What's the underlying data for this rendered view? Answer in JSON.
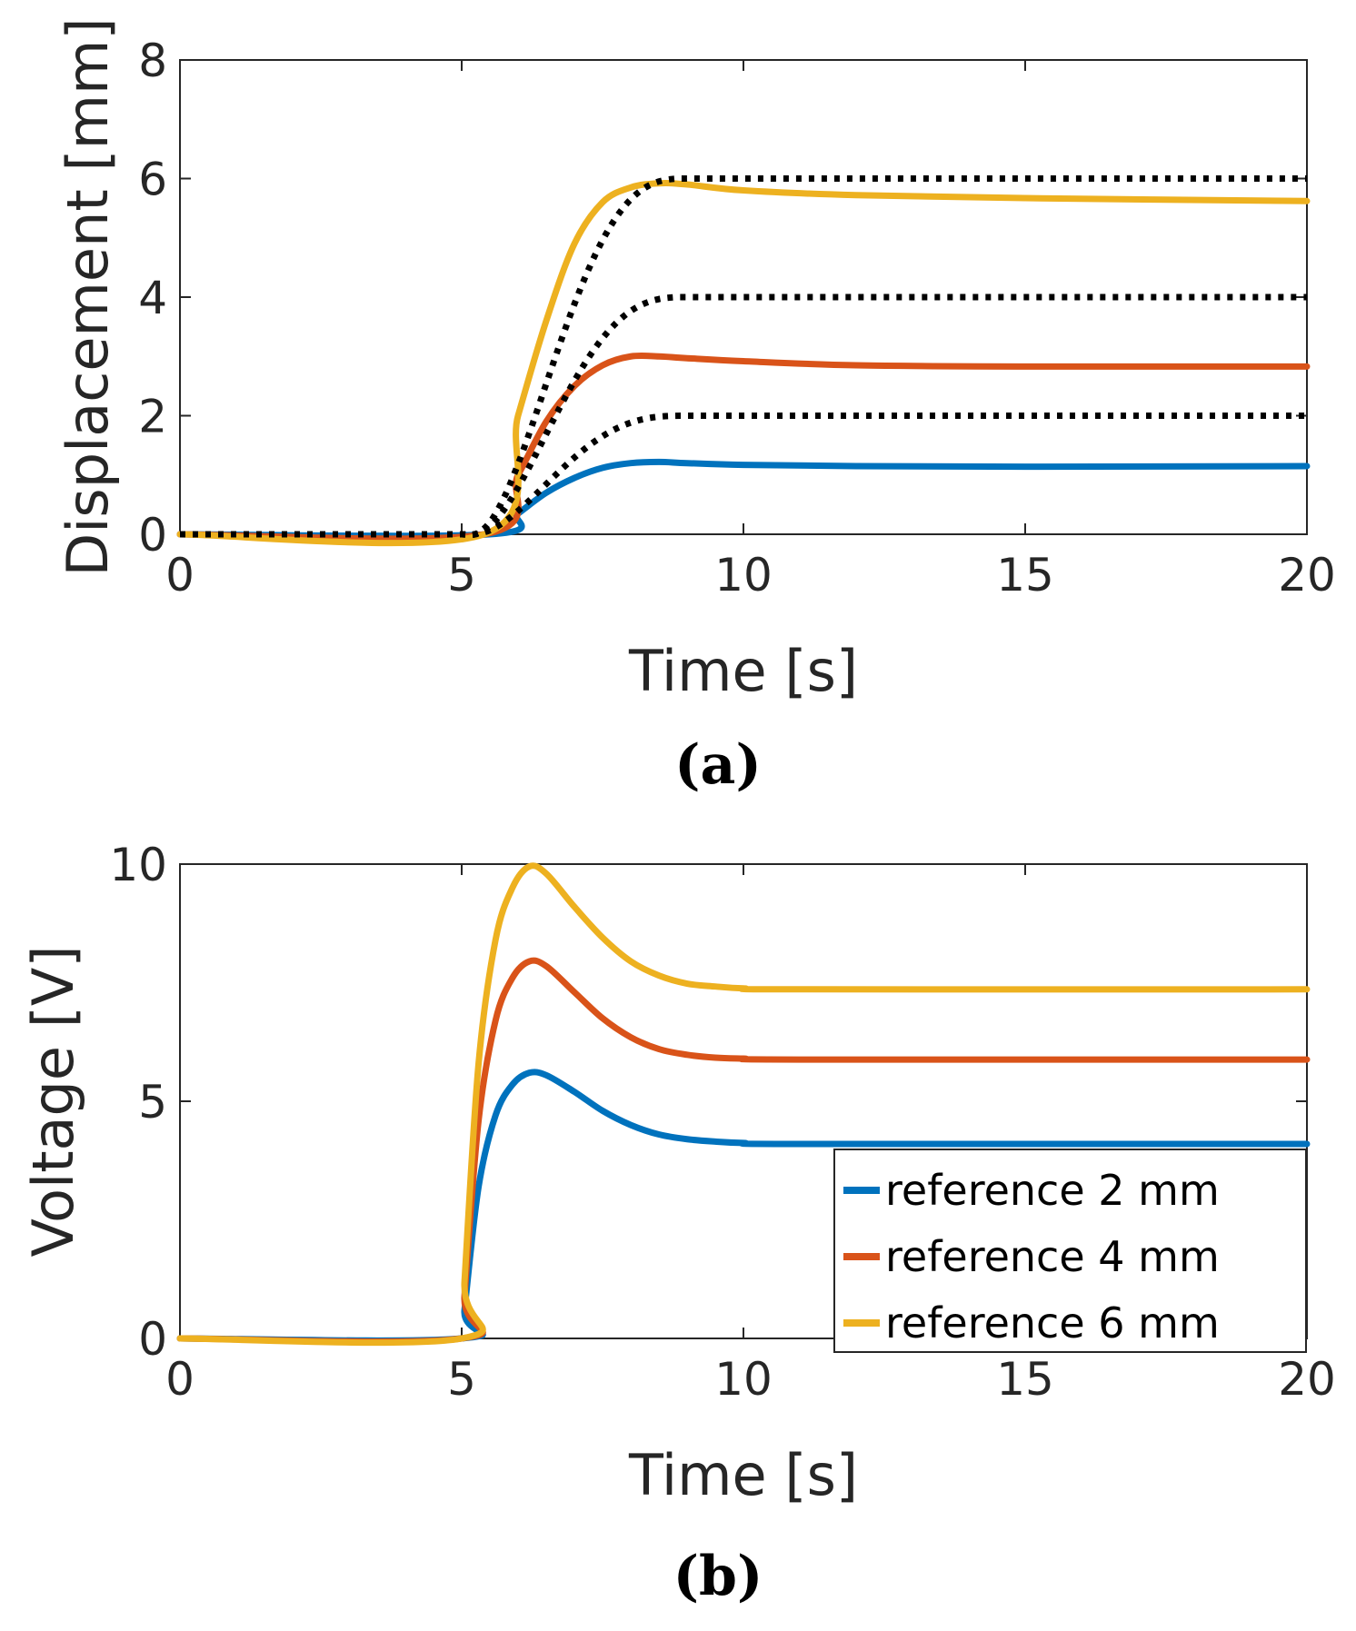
{
  "chart_data": [
    {
      "panel": "(a)",
      "type": "line",
      "xlabel": "Time [s]",
      "ylabel": "Displacement [mm]",
      "xlim": [
        0,
        20
      ],
      "ylim": [
        0,
        8
      ],
      "xticks": [
        "0",
        "5",
        "10",
        "15",
        "20"
      ],
      "yticks": [
        "0",
        "2",
        "4",
        "6",
        "8"
      ],
      "grid": false,
      "references": [
        {
          "name": "reference 2 mm",
          "color": "#000000",
          "style": "dotted",
          "final": 2
        },
        {
          "name": "reference 4 mm",
          "color": "#000000",
          "style": "dotted",
          "final": 4
        },
        {
          "name": "reference 6 mm",
          "color": "#000000",
          "style": "dotted",
          "final": 6
        }
      ],
      "series": [
        {
          "name": "reference 2 mm",
          "color": "#0072BD",
          "x": [
            0,
            5.5,
            6,
            6.5,
            7,
            7.5,
            8,
            8.5,
            9,
            10,
            12,
            15,
            20
          ],
          "y": [
            0,
            0,
            0.35,
            0.7,
            0.95,
            1.12,
            1.2,
            1.22,
            1.2,
            1.17,
            1.15,
            1.14,
            1.15
          ]
        },
        {
          "name": "reference 4 mm",
          "color": "#D95319",
          "x": [
            0,
            5.4,
            6,
            6.5,
            7,
            7.5,
            8,
            8.5,
            9,
            10,
            12,
            15,
            20
          ],
          "y": [
            0,
            0,
            1.0,
            1.9,
            2.5,
            2.85,
            3.0,
            3.0,
            2.97,
            2.92,
            2.85,
            2.83,
            2.83
          ]
        },
        {
          "name": "reference 6 mm",
          "color": "#EDB120",
          "x": [
            0,
            5.4,
            6,
            6.5,
            7,
            7.5,
            8,
            8.5,
            9,
            10,
            12,
            15,
            20
          ],
          "y": [
            0,
            0,
            2.0,
            3.6,
            4.9,
            5.6,
            5.85,
            5.92,
            5.9,
            5.8,
            5.72,
            5.67,
            5.62
          ]
        }
      ]
    },
    {
      "panel": "(b)",
      "type": "line",
      "xlabel": "Time [s]",
      "ylabel": "Voltage [V]",
      "xlim": [
        0,
        20
      ],
      "ylim": [
        0,
        10
      ],
      "xticks": [
        "0",
        "5",
        "10",
        "15",
        "20"
      ],
      "yticks": [
        "0",
        "5",
        "10"
      ],
      "grid": false,
      "legend_position": "bottom-right",
      "series": [
        {
          "name": "reference 2 mm",
          "color": "#0072BD",
          "x": [
            0,
            5,
            5.05,
            5.3,
            5.6,
            5.9,
            6.2,
            6.5,
            7,
            7.5,
            8,
            8.5,
            9,
            9.5,
            10,
            11,
            20
          ],
          "y": [
            0,
            0,
            0.6,
            3.2,
            4.7,
            5.35,
            5.6,
            5.55,
            5.2,
            4.8,
            4.5,
            4.3,
            4.2,
            4.15,
            4.12,
            4.1,
            4.1
          ]
        },
        {
          "name": "reference 4 mm",
          "color": "#D95319",
          "x": [
            0,
            5,
            5.05,
            5.3,
            5.6,
            5.9,
            6.2,
            6.5,
            7,
            7.5,
            8,
            8.5,
            9,
            9.5,
            10,
            11,
            20
          ],
          "y": [
            0,
            0,
            0.9,
            4.6,
            6.7,
            7.6,
            7.95,
            7.85,
            7.3,
            6.75,
            6.35,
            6.1,
            5.98,
            5.92,
            5.9,
            5.88,
            5.88
          ]
        },
        {
          "name": "reference 6 mm",
          "color": "#EDB120",
          "x": [
            0,
            5,
            5.05,
            5.3,
            5.6,
            5.9,
            6.2,
            6.5,
            7,
            7.5,
            8,
            8.5,
            9,
            9.5,
            10,
            11,
            20
          ],
          "y": [
            0,
            0,
            1.2,
            5.8,
            8.4,
            9.5,
            9.95,
            9.8,
            9.1,
            8.45,
            7.95,
            7.65,
            7.48,
            7.42,
            7.38,
            7.36,
            7.36
          ]
        }
      ]
    }
  ]
}
